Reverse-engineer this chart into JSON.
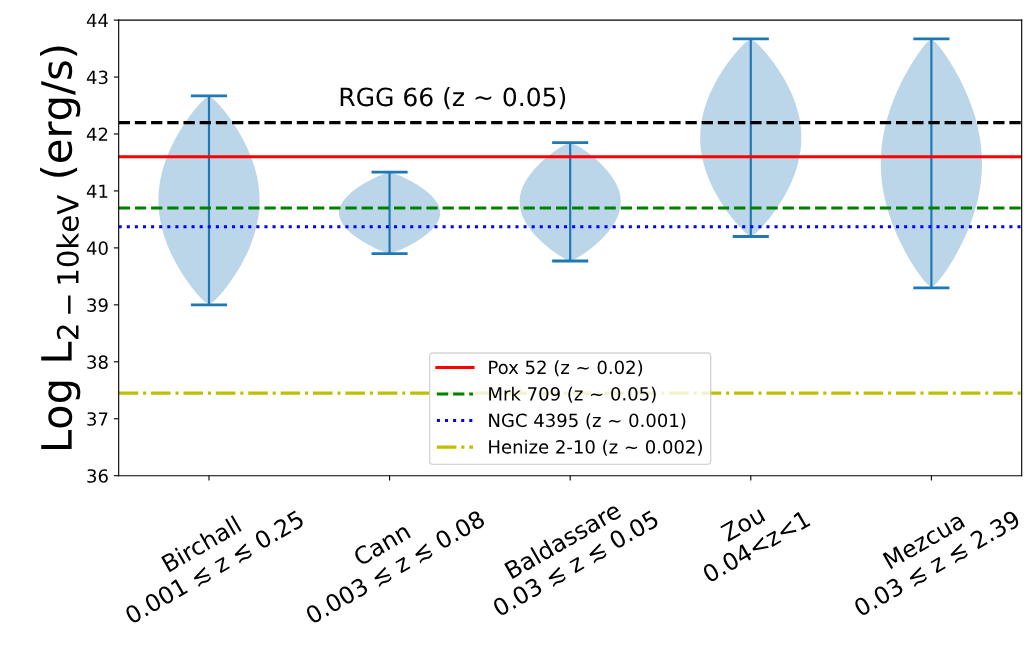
{
  "chart_data": {
    "type": "bar",
    "categories": [
      "Birchall\n0.001 ≲ z ≲ 0.25",
      "Cann\n0.003 ≲ z ≲ 0.08",
      "Baldassare\n0.03 ≲ z ≲ 0.05",
      "Zou\n0.04<z<1",
      "Mezcua\n0.03 ≲ z ≲ 2.39"
    ],
    "base": [
      39.0,
      39.9,
      39.77,
      40.2,
      39.3
    ],
    "values": [
      3.67,
      1.43,
      2.08,
      3.47,
      4.37
    ],
    "color": "#1f77b4",
    "ylabel": "Log L$_{2−10keV}$ (erg/s)",
    "ylim": [
      36,
      44
    ],
    "yticks": [
      36,
      37,
      38,
      39,
      40,
      41,
      42,
      43,
      44
    ],
    "ref_lines": [
      {
        "axis": "y",
        "value": 42.2,
        "color": "#000000",
        "line_style": "dashed"
      },
      {
        "axis": "y",
        "value": 41.6,
        "label": "Pox 52 (z ∼ 0.02)",
        "color": "#ff0000",
        "line_style": "solid"
      },
      {
        "axis": "y",
        "value": 40.7,
        "label": "Mrk 709 (z ∼ 0.05)",
        "color": "#008000",
        "line_style": "dashed"
      },
      {
        "axis": "y",
        "value": 40.37,
        "label": "NGC 4395 (z ∼ 0.001)",
        "color": "#0000ff",
        "line_style": "dotted"
      },
      {
        "axis": "y",
        "value": 37.45,
        "label": "Henize 2-10 (z ∼ 0.002)",
        "color": "#bfbf00",
        "line_style": "dashdot"
      }
    ],
    "annotations": [
      {
        "text": "RGG 66 (z ∼ 0.05)",
        "y": 42.2
      }
    ],
    "legend": "bottom",
    "grid": false
  }
}
